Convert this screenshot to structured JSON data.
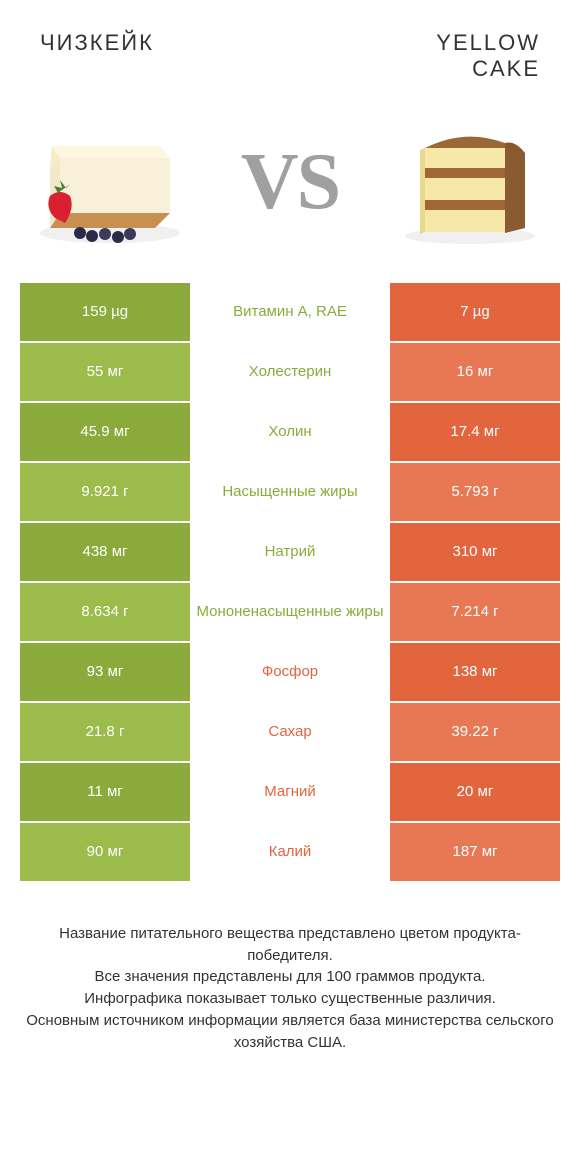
{
  "header": {
    "left_title": "ЧИЗКЕЙК",
    "right_title_line1": "YELLOW",
    "right_title_line2": "CAKE",
    "vs_text": "VS"
  },
  "colors": {
    "green_dark": "#8aab3b",
    "green_light": "#9bbc4a",
    "orange_dark": "#e2653e",
    "orange_light": "#e87853",
    "mid_green_text": "#8aab3b",
    "mid_orange_text": "#e2653e",
    "bg": "#ffffff"
  },
  "rows": [
    {
      "left": "159 µg",
      "mid": "Витамин A, RAE",
      "right": "7 µg",
      "winner": "left"
    },
    {
      "left": "55 мг",
      "mid": "Холестерин",
      "right": "16 мг",
      "winner": "left"
    },
    {
      "left": "45.9 мг",
      "mid": "Холин",
      "right": "17.4 мг",
      "winner": "left"
    },
    {
      "left": "9.921 г",
      "mid": "Насыщенные жиры",
      "right": "5.793 г",
      "winner": "left"
    },
    {
      "left": "438 мг",
      "mid": "Натрий",
      "right": "310 мг",
      "winner": "left"
    },
    {
      "left": "8.634 г",
      "mid": "Мононенасыщенные жиры",
      "right": "7.214 г",
      "winner": "left"
    },
    {
      "left": "93 мг",
      "mid": "Фосфор",
      "right": "138 мг",
      "winner": "right"
    },
    {
      "left": "21.8 г",
      "mid": "Сахар",
      "right": "39.22 г",
      "winner": "right"
    },
    {
      "left": "11 мг",
      "mid": "Магний",
      "right": "20 мг",
      "winner": "right"
    },
    {
      "left": "90 мг",
      "mid": "Калий",
      "right": "187 мг",
      "winner": "right"
    }
  ],
  "footer": {
    "line1": "Название питательного вещества представлено цветом продукта-победителя.",
    "line2": "Все значения представлены для 100 граммов продукта.",
    "line3": "Инфографика показывает только существенные различия.",
    "line4": "Основным источником информации является база министерства сельского хозяйства США."
  }
}
